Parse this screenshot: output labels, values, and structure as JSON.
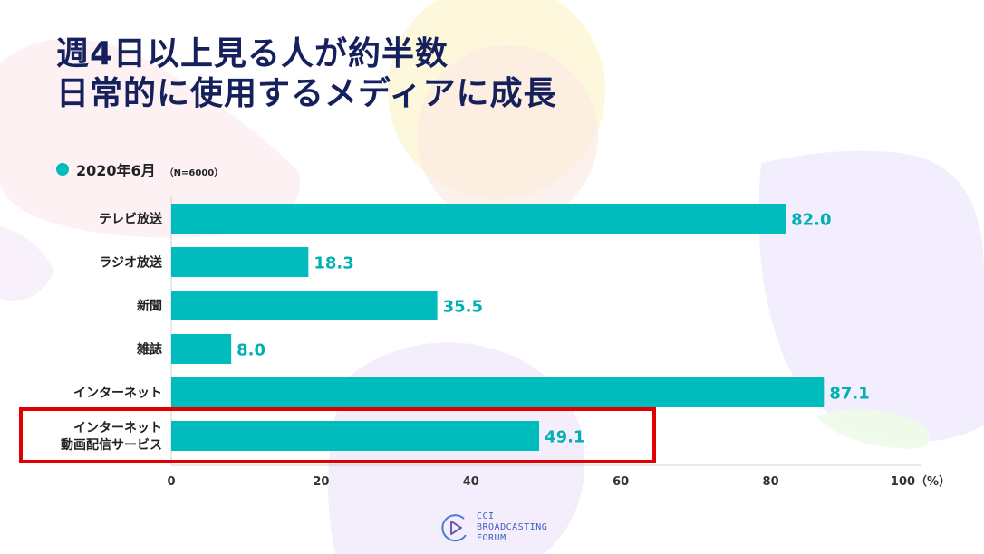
{
  "title_lines": [
    "週4日以上見る人が約半数",
    "日常的に使用するメディアに成長"
  ],
  "legend": {
    "label": "2020年6月",
    "note": "（N=6000）"
  },
  "colors": {
    "bar": "#00bcbd",
    "value_label": "#00b0b2",
    "highlight_box": "#e00000",
    "title": "#16205c"
  },
  "chart_data": {
    "type": "bar",
    "orientation": "horizontal",
    "categories": [
      "テレビ放送",
      "ラジオ放送",
      "新聞",
      "雑誌",
      "インターネット",
      "インターネット\n動画配信サービス"
    ],
    "values": [
      82.0,
      18.3,
      35.5,
      8.0,
      87.1,
      49.1
    ],
    "value_labels": [
      "82.0",
      "18.3",
      "35.5",
      "8.0",
      "87.1",
      "49.1"
    ],
    "xticks": [
      "0",
      "20",
      "40",
      "60",
      "80",
      "100（%）"
    ],
    "xtick_values": [
      0,
      20,
      40,
      60,
      80,
      100
    ],
    "xlim": [
      0,
      100
    ],
    "grid": false,
    "highlighted_category": "インターネット\n動画配信サービス"
  },
  "logo": {
    "icon": "play-circle-icon",
    "lines": [
      "CCI",
      "BROADCASTING",
      "FORUM"
    ]
  }
}
